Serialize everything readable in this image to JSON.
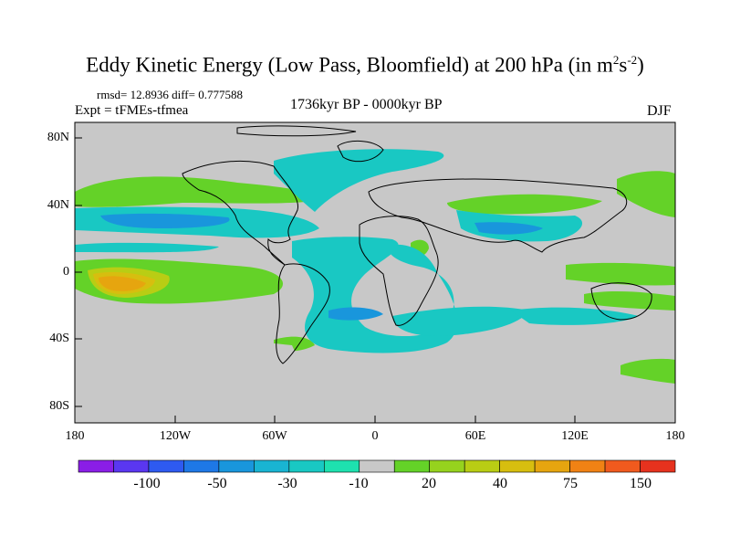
{
  "title": {
    "prefix": "Eddy Kinetic Energy (Low Pass, Bloomfield) at 200 hPa (in m",
    "sup1": "2",
    "mid": "s",
    "sup2": "-2",
    "suffix": ")"
  },
  "stats": "rmsd= 12.8936 diff= 0.777588",
  "experiment": "Expt = tFMEs-tfmea",
  "period": "1736kyr BP - 0000kyr BP",
  "season": "DJF",
  "y_axis_labels": [
    "80N",
    "40N",
    "0",
    "40S",
    "80S"
  ],
  "x_axis_labels": [
    "180",
    "120W",
    "60W",
    "0",
    "60E",
    "120E",
    "180"
  ],
  "colorbar": {
    "labels": [
      "-100",
      "-50",
      "-30",
      "-10",
      "20",
      "40",
      "75",
      "150"
    ],
    "colors": [
      "#8a1ee6",
      "#5a37f0",
      "#2e5af0",
      "#1e78e6",
      "#1996dc",
      "#19b4d2",
      "#19c8c3",
      "#1ee1af",
      "#c8c8c8",
      "#64d228",
      "#96d21e",
      "#b9cd14",
      "#d7be0f",
      "#e6a50f",
      "#f08214",
      "#f05a1e",
      "#e6321e"
    ],
    "background_gray": "#c8c8c8"
  }
}
